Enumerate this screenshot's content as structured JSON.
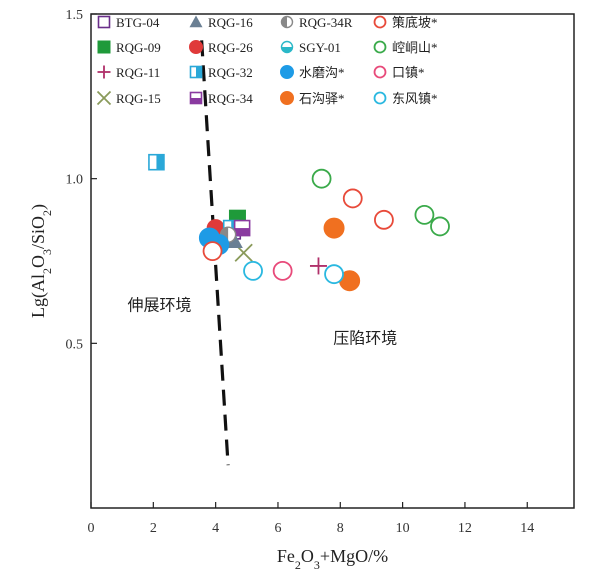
{
  "chart_data": {
    "type": "scatter",
    "xlabel": "Fe2O3+MgO/%",
    "ylabel": "Lg(Al2O3/SiO2)",
    "xlim": [
      0,
      15.5
    ],
    "ylim": [
      0.0,
      1.5
    ],
    "x_ticks": [
      0,
      2,
      4,
      6,
      8,
      10,
      12,
      14
    ],
    "y_ticks": [
      0.5,
      1.0,
      1.5
    ],
    "y_tick_labels": [
      "0.5",
      "1.0",
      "1.5"
    ],
    "regions": [
      {
        "label": "伸展环境",
        "x": 2.2,
        "y": 0.6
      },
      {
        "label": "压陷环境",
        "x": 8.8,
        "y": 0.5
      }
    ],
    "boundary_line": [
      {
        "x": 3.55,
        "y": 1.42
      },
      {
        "x": 4.4,
        "y": 0.13
      }
    ],
    "series": [
      {
        "name": "BTG-04",
        "marker": "square-open",
        "color": "#6a2e8a",
        "points": [
          [
            4.55,
            0.84
          ]
        ]
      },
      {
        "name": "RQG-09",
        "marker": "square",
        "color": "#1f9a3a",
        "points": [
          [
            4.7,
            0.88
          ]
        ]
      },
      {
        "name": "RQG-11",
        "marker": "plus",
        "color": "#b0306a",
        "points": [
          [
            7.3,
            0.735
          ]
        ]
      },
      {
        "name": "RQG-15",
        "marker": "x",
        "color": "#8a9a5a",
        "points": [
          [
            4.9,
            0.775
          ]
        ]
      },
      {
        "name": "RQG-16",
        "marker": "triangle",
        "color": "#6a7f93",
        "points": [
          [
            4.6,
            0.81
          ]
        ]
      },
      {
        "name": "RQG-26",
        "marker": "circle",
        "color": "#e03a3a",
        "points": [
          [
            4.0,
            0.85
          ]
        ]
      },
      {
        "name": "RQG-32",
        "marker": "square-half-v",
        "color": "#2aa8d8",
        "points": [
          [
            2.1,
            1.05
          ],
          [
            4.5,
            0.85
          ]
        ]
      },
      {
        "name": "RQG-34",
        "marker": "square-half-h",
        "color": "#8a3aa0",
        "points": [
          [
            4.85,
            0.85
          ]
        ]
      },
      {
        "name": "RQG-34R",
        "marker": "circle-half-v",
        "color": "#888888",
        "points": [
          [
            4.4,
            0.83
          ]
        ]
      },
      {
        "name": "SGY-01",
        "marker": "circle-half-h",
        "color": "#2ab8c8",
        "points": [
          [
            7.8,
            0.715
          ]
        ]
      },
      {
        "name": "水磨沟*",
        "marker": "circle",
        "color": "#1e9be6",
        "points": [
          [
            3.8,
            0.82
          ],
          [
            4.1,
            0.8
          ]
        ]
      },
      {
        "name": "石沟驿*",
        "marker": "circle",
        "color": "#f07020",
        "points": [
          [
            7.8,
            0.85
          ],
          [
            8.3,
            0.69
          ]
        ]
      },
      {
        "name": "策底坡*",
        "marker": "circle-open",
        "color": "#e84a3a",
        "points": [
          [
            3.9,
            0.78
          ],
          [
            8.4,
            0.94
          ],
          [
            9.4,
            0.875
          ]
        ]
      },
      {
        "name": "崆峒山*",
        "marker": "circle-open",
        "color": "#3aaa4a",
        "points": [
          [
            7.4,
            1.0
          ],
          [
            10.7,
            0.89
          ],
          [
            11.2,
            0.855
          ]
        ]
      },
      {
        "name": "口镇*",
        "marker": "circle-open",
        "color": "#e84a7a",
        "points": [
          [
            6.15,
            0.72
          ]
        ]
      },
      {
        "name": "东风镇*",
        "marker": "circle-open",
        "color": "#2ab8e0",
        "points": [
          [
            5.2,
            0.72
          ],
          [
            7.8,
            0.71
          ]
        ]
      }
    ]
  }
}
